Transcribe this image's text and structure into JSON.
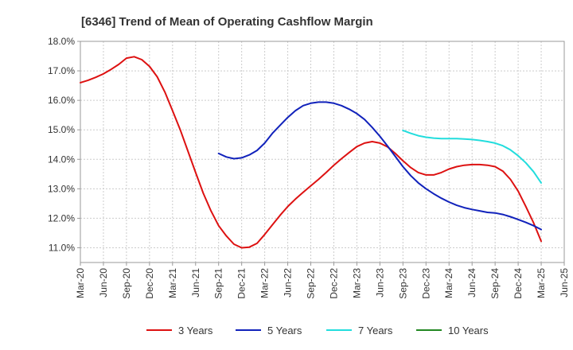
{
  "chart_data": {
    "type": "line",
    "title": "[6346]  Trend of Mean of Operating Cashflow Margin",
    "xlabel": "",
    "ylabel": "",
    "x_ticks": [
      "Mar-20",
      "Jun-20",
      "Sep-20",
      "Dec-20",
      "Mar-21",
      "Jun-21",
      "Sep-21",
      "Dec-21",
      "Mar-22",
      "Jun-22",
      "Sep-22",
      "Dec-22",
      "Mar-23",
      "Jun-23",
      "Sep-23",
      "Dec-23",
      "Mar-24",
      "Jun-24",
      "Sep-24",
      "Dec-24",
      "Mar-25",
      "Jun-25"
    ],
    "y_ticks": [
      "11.0%",
      "12.0%",
      "13.0%",
      "14.0%",
      "15.0%",
      "16.0%",
      "17.0%",
      "18.0%"
    ],
    "ylim": [
      10.5,
      18.0
    ],
    "grid": true,
    "legend_position": "bottom",
    "series": [
      {
        "name": "3 Years",
        "color": "#dd1111",
        "x": [
          "Mar-20",
          "Apr-20",
          "May-20",
          "Jun-20",
          "Jul-20",
          "Aug-20",
          "Sep-20",
          "Oct-20",
          "Nov-20",
          "Dec-20",
          "Jan-21",
          "Feb-21",
          "Mar-21",
          "Apr-21",
          "May-21",
          "Jun-21",
          "Jul-21",
          "Aug-21",
          "Sep-21",
          "Oct-21",
          "Nov-21",
          "Dec-21",
          "Jan-22",
          "Feb-22",
          "Mar-22",
          "Apr-22",
          "May-22",
          "Jun-22",
          "Jul-22",
          "Aug-22",
          "Sep-22",
          "Oct-22",
          "Nov-22",
          "Dec-22",
          "Jan-23",
          "Feb-23",
          "Mar-23",
          "Apr-23",
          "May-23",
          "Jun-23",
          "Jul-23",
          "Aug-23",
          "Sep-23",
          "Oct-23",
          "Nov-23",
          "Dec-23",
          "Jan-24",
          "Feb-24",
          "Mar-24",
          "Apr-24",
          "May-24",
          "Jun-24",
          "Jul-24",
          "Aug-24",
          "Sep-24",
          "Oct-24",
          "Nov-24",
          "Dec-24",
          "Jan-25",
          "Feb-25",
          "Mar-25"
        ],
        "values": [
          16.6,
          16.68,
          16.78,
          16.9,
          17.05,
          17.22,
          17.43,
          17.48,
          17.38,
          17.15,
          16.8,
          16.28,
          15.65,
          15.0,
          14.28,
          13.55,
          12.85,
          12.25,
          11.75,
          11.4,
          11.12,
          11.0,
          11.02,
          11.15,
          11.45,
          11.78,
          12.1,
          12.4,
          12.65,
          12.88,
          13.1,
          13.32,
          13.55,
          13.8,
          14.02,
          14.23,
          14.43,
          14.55,
          14.6,
          14.55,
          14.42,
          14.2,
          13.95,
          13.72,
          13.55,
          13.47,
          13.47,
          13.55,
          13.67,
          13.75,
          13.8,
          13.82,
          13.82,
          13.8,
          13.75,
          13.6,
          13.32,
          12.92,
          12.4,
          11.85,
          11.22
        ]
      },
      {
        "name": "5 Years",
        "color": "#1122bb",
        "x": [
          "Sep-21",
          "Oct-21",
          "Nov-21",
          "Dec-21",
          "Jan-22",
          "Feb-22",
          "Mar-22",
          "Apr-22",
          "May-22",
          "Jun-22",
          "Jul-22",
          "Aug-22",
          "Sep-22",
          "Oct-22",
          "Nov-22",
          "Dec-22",
          "Jan-23",
          "Feb-23",
          "Mar-23",
          "Apr-23",
          "May-23",
          "Jun-23",
          "Jul-23",
          "Aug-23",
          "Sep-23",
          "Oct-23",
          "Nov-23",
          "Dec-23",
          "Jan-24",
          "Feb-24",
          "Mar-24",
          "Apr-24",
          "May-24",
          "Jun-24",
          "Jul-24",
          "Aug-24",
          "Sep-24",
          "Oct-24",
          "Nov-24",
          "Dec-24",
          "Jan-25",
          "Feb-25",
          "Mar-25"
        ],
        "values": [
          14.2,
          14.08,
          14.02,
          14.05,
          14.15,
          14.3,
          14.55,
          14.88,
          15.15,
          15.42,
          15.65,
          15.82,
          15.9,
          15.94,
          15.94,
          15.9,
          15.82,
          15.7,
          15.55,
          15.35,
          15.08,
          14.78,
          14.45,
          14.1,
          13.75,
          13.45,
          13.2,
          13.0,
          12.83,
          12.68,
          12.55,
          12.44,
          12.36,
          12.3,
          12.25,
          12.2,
          12.18,
          12.13,
          12.05,
          11.96,
          11.86,
          11.75,
          11.62
        ]
      },
      {
        "name": "7 Years",
        "color": "#22dddd",
        "x": [
          "Sep-23",
          "Oct-23",
          "Nov-23",
          "Dec-23",
          "Jan-24",
          "Feb-24",
          "Mar-24",
          "Apr-24",
          "May-24",
          "Jun-24",
          "Jul-24",
          "Aug-24",
          "Sep-24",
          "Oct-24",
          "Nov-24",
          "Dec-24",
          "Jan-25",
          "Feb-25",
          "Mar-25"
        ],
        "values": [
          14.98,
          14.88,
          14.8,
          14.75,
          14.72,
          14.7,
          14.7,
          14.7,
          14.69,
          14.67,
          14.64,
          14.6,
          14.55,
          14.46,
          14.32,
          14.12,
          13.88,
          13.58,
          13.2
        ]
      },
      {
        "name": "10 Years",
        "color": "#228822",
        "x": [],
        "values": []
      }
    ]
  }
}
